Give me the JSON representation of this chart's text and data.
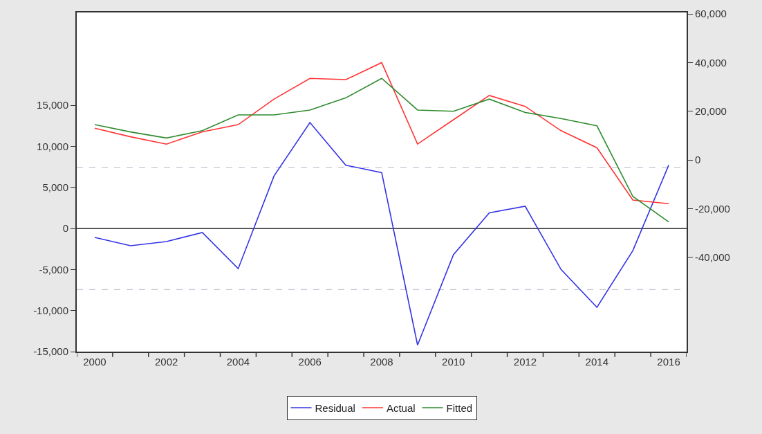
{
  "chart_data": {
    "type": "line",
    "x": [
      2000,
      2001,
      2002,
      2003,
      2004,
      2005,
      2006,
      2007,
      2008,
      2009,
      2010,
      2011,
      2012,
      2013,
      2014,
      2015,
      2016
    ],
    "series": [
      {
        "name": "Residual",
        "color": "#3333e6",
        "values": [
          -1100,
          -2100,
          -1600,
          -500,
          -4900,
          6400,
          12900,
          7700,
          6800,
          -14200,
          -3200,
          1900,
          2700,
          -5000,
          -9600,
          -2700,
          7700
        ]
      },
      {
        "name": "Actual",
        "color": "#ff3333",
        "axis": "y2",
        "values": [
          13000,
          9500,
          6500,
          11500,
          14500,
          25000,
          33500,
          33000,
          40000,
          6500,
          16500,
          26500,
          22000,
          12000,
          5000,
          -16500,
          -18000
        ]
      },
      {
        "name": "Fitted",
        "color": "#2e8b2e",
        "axis": "y2",
        "values": [
          14500,
          11500,
          9000,
          12000,
          18500,
          18500,
          20500,
          25500,
          33500,
          20500,
          20000,
          25000,
          19500,
          17000,
          14000,
          -15000,
          -25500
        ]
      }
    ],
    "xlim": [
      1999.5,
      2016.5
    ],
    "xticks": [
      {
        "value": 1999.5,
        "label": null
      },
      {
        "value": 2000.5,
        "label": null
      },
      {
        "value": 2001.5,
        "label": null
      },
      {
        "value": 2002.5,
        "label": null
      },
      {
        "value": 2003.5,
        "label": null
      },
      {
        "value": 2004.5,
        "label": null
      },
      {
        "value": 2005.5,
        "label": null
      },
      {
        "value": 2006.5,
        "label": null
      },
      {
        "value": 2007.5,
        "label": null
      },
      {
        "value": 2008.5,
        "label": null
      },
      {
        "value": 2009.5,
        "label": null
      },
      {
        "value": 2010.5,
        "label": null
      },
      {
        "value": 2011.5,
        "label": null
      },
      {
        "value": 2012.5,
        "label": null
      },
      {
        "value": 2013.5,
        "label": null
      },
      {
        "value": 2014.5,
        "label": null
      },
      {
        "value": 2015.5,
        "label": null
      },
      {
        "value": 2016.5,
        "label": null
      },
      2000,
      2002,
      2004,
      2006,
      2008,
      2010,
      2012,
      2014,
      2016
    ],
    "ylim": [
      -15000,
      26300
    ],
    "yticks": [
      {
        "value": -15000,
        "label": "-15,000"
      },
      {
        "value": -10000,
        "label": "-10,000"
      },
      {
        "value": -5000,
        "label": "-5,000"
      },
      0,
      {
        "value": 5000,
        "label": "5,000"
      },
      {
        "value": 10000,
        "label": "10,000"
      },
      {
        "value": 15000,
        "label": "15,000"
      }
    ],
    "y2lim": [
      -78800,
      60600
    ],
    "y2ticks": [
      {
        "value": -40000,
        "label": "-40,000"
      },
      {
        "value": -20000,
        "label": "-20,000"
      },
      0,
      {
        "value": 20000,
        "label": "20,000"
      },
      {
        "value": 40000,
        "label": "40,000"
      },
      {
        "value": 60000,
        "label": "60,000"
      }
    ],
    "ref_lines": [
      {
        "axis": "y",
        "value": 0,
        "color": "#000000",
        "line_style": "solid"
      },
      {
        "axis": "y",
        "value": 7440,
        "color": "#b4b4c8",
        "line_style": "dashed"
      },
      {
        "axis": "y",
        "value": -7440,
        "color": "#b4b4c8",
        "line_style": "dashed"
      }
    ],
    "grid": false,
    "legend": "bottom",
    "line_style": "solid"
  }
}
